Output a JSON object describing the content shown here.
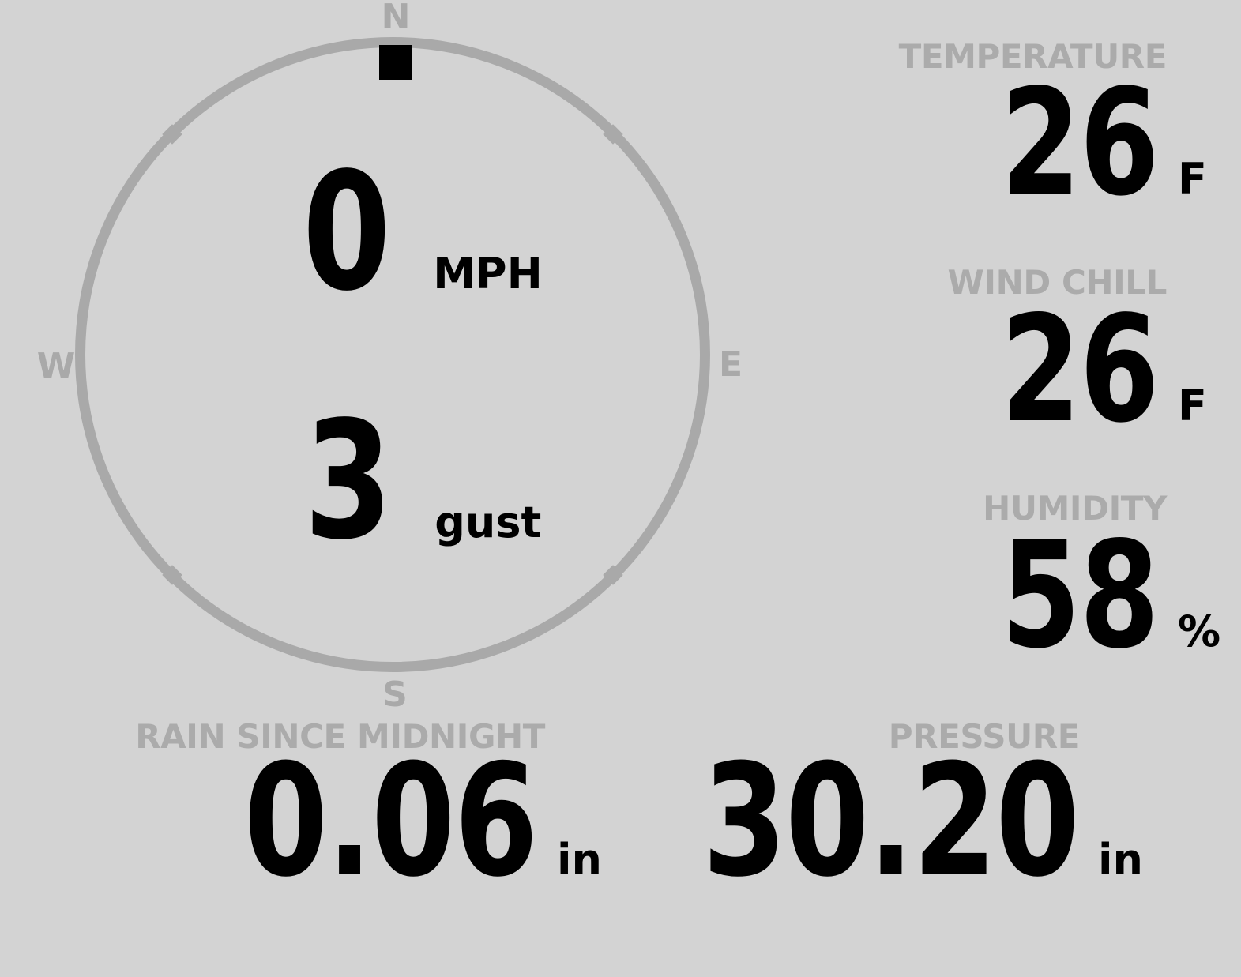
{
  "colors": {
    "background": "#d3d3d3",
    "muted_gray": "#a9a9a9",
    "label_gray": "#ababab",
    "value_black": "#000000"
  },
  "compass": {
    "cardinals": {
      "north": "N",
      "east": "E",
      "south": "S",
      "west": "W"
    },
    "wind_direction": "N",
    "speed": {
      "value": "0",
      "unit": "MPH"
    },
    "gust": {
      "value": "3",
      "unit": "gust"
    }
  },
  "stats": {
    "temperature": {
      "label": "TEMPERATURE",
      "value": "26",
      "unit": "F"
    },
    "wind_chill": {
      "label": "WIND CHILL",
      "value": "26",
      "unit": "F"
    },
    "humidity": {
      "label": "HUMIDITY",
      "value": "58",
      "unit": "%"
    },
    "rain_since_midnight": {
      "label": "RAIN SINCE MIDNIGHT",
      "value": "0.06",
      "unit": "in"
    },
    "pressure": {
      "label": "PRESSURE",
      "value": "30.20",
      "unit": "in"
    }
  }
}
